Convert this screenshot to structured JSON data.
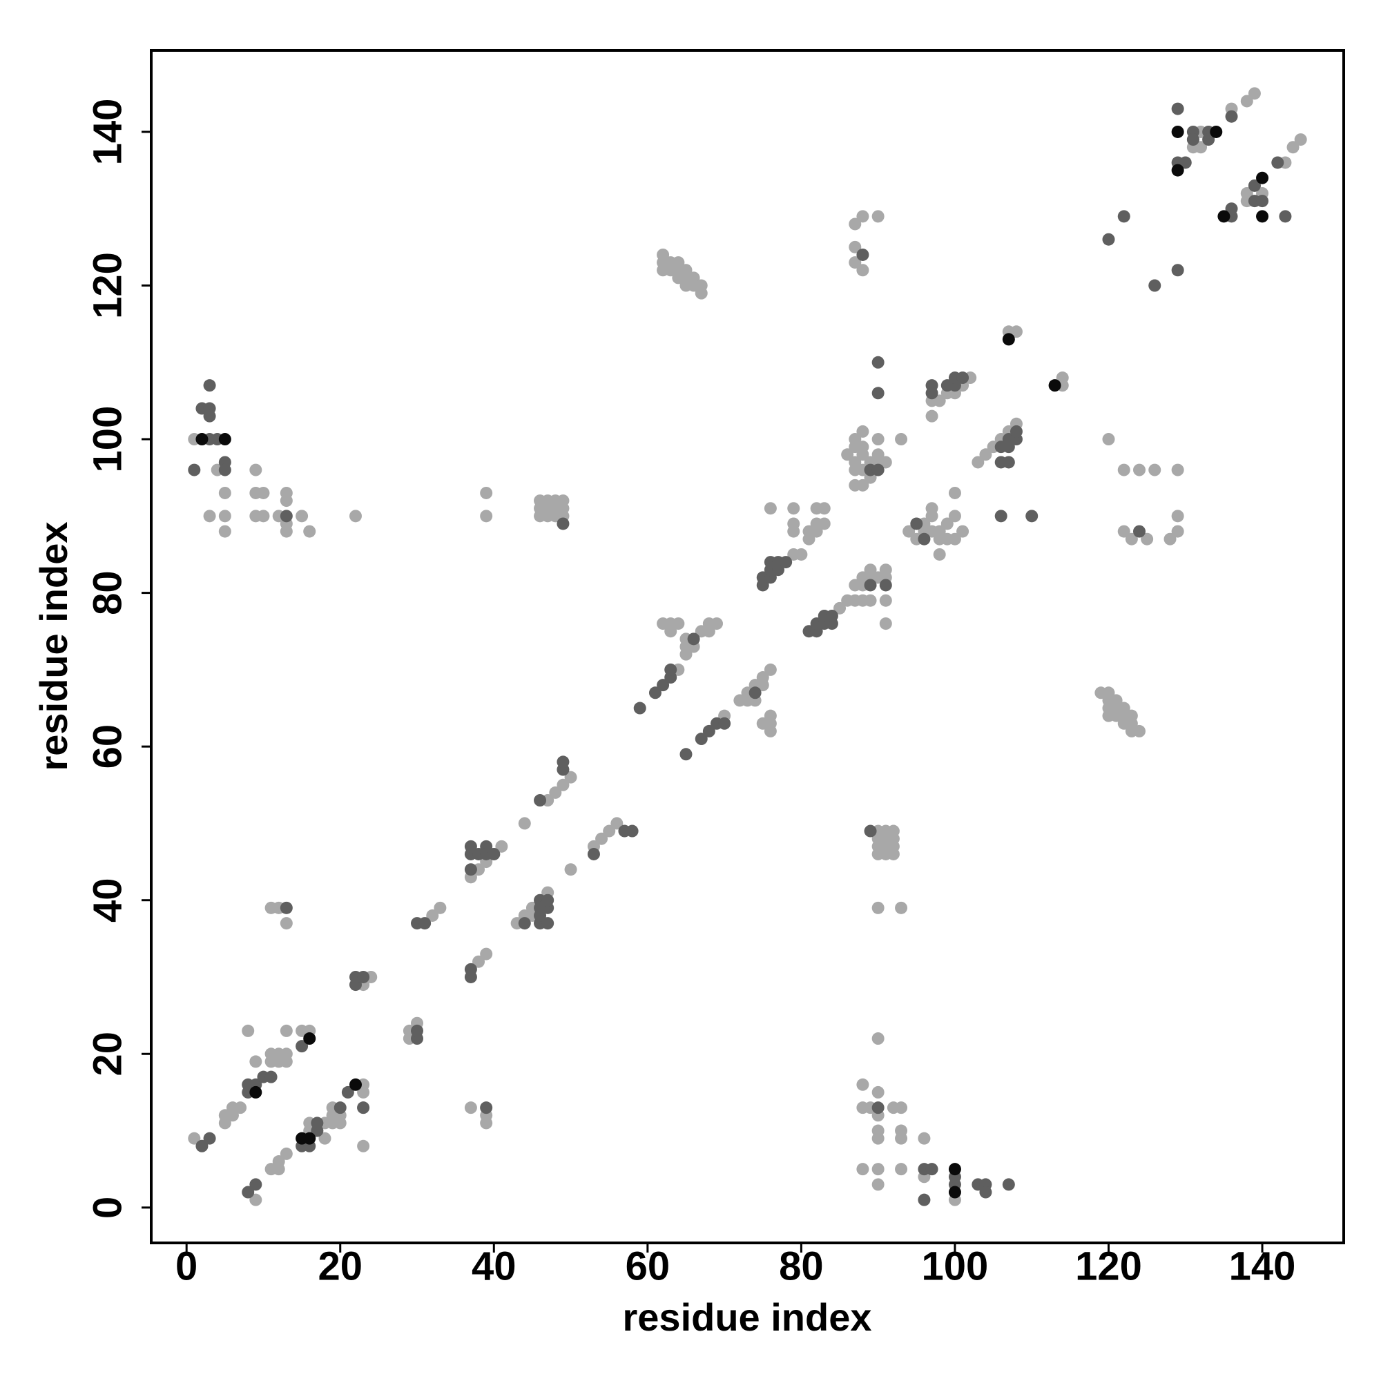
{
  "chart_data": {
    "type": "scatter",
    "xlabel": "residue index",
    "ylabel": "residue index",
    "xlim": [
      -4.6,
      150.6
    ],
    "ylim": [
      -4.6,
      150.6
    ],
    "xticks": [
      0,
      20,
      40,
      60,
      80,
      100,
      120,
      140
    ],
    "yticks": [
      0,
      20,
      40,
      60,
      80,
      100,
      120,
      140
    ],
    "grid": false,
    "series": [
      {
        "color": "#a8a8a8",
        "x": [
          1,
          5,
          5,
          6,
          6,
          7,
          8,
          9,
          11,
          11,
          12,
          12,
          13,
          13,
          13,
          15,
          16,
          9,
          11,
          12,
          12,
          13,
          16,
          16,
          18,
          18,
          19,
          19,
          20,
          20,
          19,
          23,
          23,
          23,
          23,
          23,
          24,
          29,
          29,
          30,
          32,
          33,
          38,
          39,
          11,
          12,
          13,
          37,
          39,
          39,
          37,
          38,
          39,
          41,
          40,
          39,
          39,
          43,
          44,
          45,
          47,
          45,
          44,
          47,
          48,
          49,
          50,
          50,
          53,
          54,
          55,
          56,
          46,
          46,
          46,
          47,
          47,
          47,
          48,
          48,
          48,
          49,
          49,
          49,
          64,
          62,
          63,
          63,
          64,
          65,
          65,
          65,
          66,
          67,
          68,
          69,
          68,
          70,
          72,
          73,
          73,
          74,
          75,
          75,
          76,
          74,
          76,
          75,
          76,
          76,
          62,
          62,
          62,
          63,
          63,
          64,
          64,
          64,
          65,
          65,
          65,
          66,
          66,
          67,
          67,
          79,
          80,
          76,
          79,
          79,
          79,
          81,
          81,
          82,
          82,
          83,
          82,
          83,
          85,
          86,
          87,
          88,
          89,
          87,
          88,
          88,
          89,
          89,
          90,
          91,
          91,
          91,
          91,
          87,
          87,
          87,
          88,
          88,
          90,
          86,
          87,
          87,
          87,
          87,
          87,
          88,
          88,
          88,
          88,
          88,
          89,
          89,
          90,
          90,
          91,
          90,
          93,
          90,
          90,
          90,
          90,
          91,
          91,
          91,
          91,
          92,
          92,
          92,
          92,
          90,
          93,
          90,
          88,
          88,
          89,
          90,
          90,
          90,
          90,
          92,
          93,
          93,
          93,
          88,
          90,
          90,
          93,
          96,
          96,
          100,
          96,
          95,
          96,
          97,
          97,
          98,
          98,
          99,
          99,
          100,
          101,
          97,
          100,
          100,
          98,
          94,
          97,
          97,
          98,
          99,
          100,
          101,
          102,
          103,
          104,
          105,
          106,
          107,
          108,
          107,
          108,
          114,
          114,
          119,
          120,
          120,
          120,
          120,
          121,
          121,
          121,
          122,
          122,
          122,
          123,
          123,
          124,
          123,
          120,
          122,
          124,
          126,
          129,
          122,
          123,
          125,
          128,
          129,
          129,
          131,
          131,
          132,
          132,
          136,
          138,
          139,
          138,
          138,
          139,
          140,
          143,
          144,
          145,
          1,
          4,
          5,
          3,
          5,
          5,
          9,
          9,
          10,
          9,
          10,
          12,
          13,
          13,
          13,
          13,
          15,
          16,
          22
        ],
        "y": [
          9,
          11,
          12,
          12,
          13,
          13,
          23,
          19,
          20,
          19,
          20,
          19,
          20,
          19,
          23,
          23,
          23,
          1,
          5,
          5,
          6,
          7,
          10,
          11,
          9,
          11,
          11,
          12,
          11,
          12,
          13,
          15,
          16,
          13,
          8,
          29,
          30,
          23,
          22,
          24,
          38,
          39,
          32,
          33,
          39,
          39,
          37,
          13,
          12,
          11,
          43,
          44,
          45,
          47,
          46,
          93,
          90,
          37,
          38,
          39,
          41,
          38,
          50,
          53,
          54,
          55,
          56,
          44,
          47,
          48,
          49,
          50,
          90,
          91,
          92,
          90,
          91,
          92,
          90,
          91,
          92,
          90,
          91,
          92,
          70,
          76,
          75,
          76,
          76,
          72,
          73,
          74,
          73,
          75,
          75,
          76,
          76,
          64,
          66,
          66,
          67,
          68,
          68,
          69,
          70,
          66,
          63,
          63,
          62,
          64,
          124,
          123,
          122,
          122,
          123,
          121,
          122,
          123,
          121,
          122,
          120,
          121,
          120,
          119,
          120,
          85,
          85,
          91,
          91,
          89,
          88,
          88,
          87,
          88,
          89,
          89,
          91,
          91,
          78,
          79,
          79,
          79,
          79,
          81,
          81,
          82,
          82,
          83,
          82,
          82,
          83,
          79,
          76,
          123,
          125,
          128,
          122,
          129,
          129,
          98,
          94,
          96,
          97,
          99,
          100,
          94,
          96,
          98,
          99,
          101,
          95,
          97,
          97,
          98,
          97,
          100,
          100,
          46,
          47,
          48,
          49,
          46,
          47,
          48,
          49,
          46,
          47,
          48,
          49,
          39,
          39,
          22,
          16,
          13,
          13,
          15,
          12,
          10,
          9,
          13,
          13,
          10,
          9,
          5,
          5,
          3,
          5,
          9,
          4,
          1,
          88,
          87,
          89,
          88,
          90,
          87,
          88,
          87,
          89,
          87,
          88,
          91,
          90,
          93,
          85,
          88,
          103,
          105,
          105,
          106,
          106,
          107,
          108,
          97,
          98,
          99,
          100,
          101,
          102,
          114,
          114,
          107,
          108,
          67,
          67,
          66,
          65,
          64,
          66,
          65,
          64,
          65,
          64,
          63,
          64,
          63,
          62,
          62,
          100,
          96,
          96,
          96,
          96,
          88,
          87,
          87,
          87,
          88,
          90,
          138,
          139,
          138,
          140,
          143,
          144,
          145,
          131,
          132,
          133,
          132,
          136,
          138,
          139,
          100,
          96,
          93,
          90,
          90,
          88,
          96,
          93,
          93,
          90,
          90,
          90,
          93,
          92,
          89,
          88,
          90,
          88,
          90
        ]
      },
      {
        "color": "#5f5f5f",
        "x": [
          2,
          3,
          8,
          8,
          9,
          10,
          11,
          15,
          8,
          9,
          15,
          16,
          17,
          17,
          20,
          21,
          23,
          22,
          22,
          23,
          30,
          30,
          30,
          31,
          37,
          37,
          13,
          39,
          37,
          37,
          37,
          38,
          39,
          39,
          40,
          44,
          46,
          46,
          47,
          47,
          46,
          47,
          46,
          46,
          49,
          49,
          53,
          57,
          58,
          49,
          59,
          61,
          62,
          63,
          63,
          66,
          65,
          67,
          68,
          69,
          70,
          74,
          75,
          75,
          76,
          76,
          76,
          77,
          77,
          78,
          81,
          82,
          82,
          83,
          83,
          84,
          84,
          89,
          91,
          88,
          89,
          90,
          90,
          90,
          89,
          90,
          96,
          97,
          96,
          100,
          100,
          103,
          104,
          104,
          107,
          95,
          96,
          97,
          97,
          99,
          100,
          100,
          101,
          106,
          107,
          106,
          107,
          107,
          108,
          108,
          106,
          110,
          124,
          120,
          122,
          126,
          129,
          129,
          129,
          130,
          131,
          133,
          133,
          131,
          136,
          136,
          136,
          139,
          139,
          140,
          143,
          142,
          2,
          3,
          4,
          3,
          3,
          3,
          1,
          5,
          5,
          13
        ],
        "y": [
          8,
          9,
          15,
          16,
          16,
          17,
          17,
          21,
          2,
          3,
          8,
          8,
          10,
          11,
          13,
          15,
          13,
          29,
          30,
          30,
          22,
          23,
          37,
          37,
          30,
          31,
          39,
          13,
          44,
          46,
          47,
          46,
          47,
          46,
          46,
          37,
          37,
          38,
          37,
          39,
          40,
          40,
          39,
          53,
          57,
          58,
          46,
          49,
          49,
          89,
          65,
          67,
          68,
          69,
          70,
          74,
          59,
          61,
          62,
          63,
          63,
          67,
          81,
          82,
          82,
          83,
          84,
          83,
          84,
          84,
          75,
          75,
          76,
          76,
          77,
          76,
          77,
          81,
          81,
          124,
          96,
          96,
          106,
          110,
          49,
          13,
          5,
          5,
          1,
          3,
          4,
          3,
          3,
          2,
          3,
          89,
          87,
          106,
          107,
          107,
          107,
          108,
          108,
          97,
          97,
          99,
          99,
          100,
          100,
          101,
          90,
          90,
          88,
          126,
          129,
          120,
          122,
          143,
          136,
          136,
          140,
          140,
          139,
          139,
          129,
          130,
          142,
          131,
          133,
          131,
          129,
          136,
          104,
          104,
          100,
          103,
          107,
          100,
          96,
          97,
          96,
          90
        ]
      },
      {
        "color": "#0a0a0a",
        "x": [
          9,
          16,
          15,
          16,
          22,
          100,
          100,
          107,
          113,
          129,
          129,
          134,
          135,
          140,
          140,
          2,
          5
        ],
        "y": [
          15,
          22,
          9,
          9,
          16,
          5,
          2,
          113,
          107,
          140,
          135,
          140,
          129,
          134,
          129,
          100,
          100
        ]
      }
    ]
  }
}
